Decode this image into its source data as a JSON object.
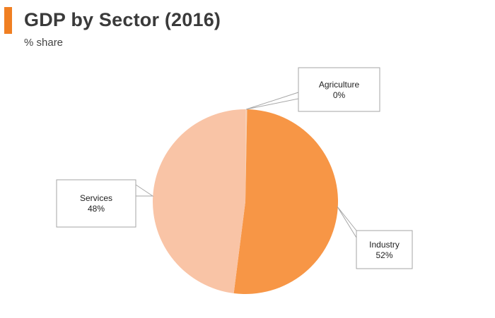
{
  "header": {
    "title": "GDP by Sector (2016)",
    "subtitle": "% share",
    "accent_color": "#f07f22"
  },
  "chart_data": {
    "type": "pie",
    "title": "GDP by Sector (2016)",
    "subtitle": "% share",
    "start": "top",
    "direction": "clockwise",
    "slices": [
      {
        "label": "Agriculture",
        "value": 0.3,
        "display": "0%",
        "color": "#f7d0b6"
      },
      {
        "label": "Industry",
        "value": 51.7,
        "display": "52%",
        "color": "#f79646"
      },
      {
        "label": "Services",
        "value": 48.0,
        "display": "48%",
        "color": "#f9c4a6"
      }
    ]
  }
}
